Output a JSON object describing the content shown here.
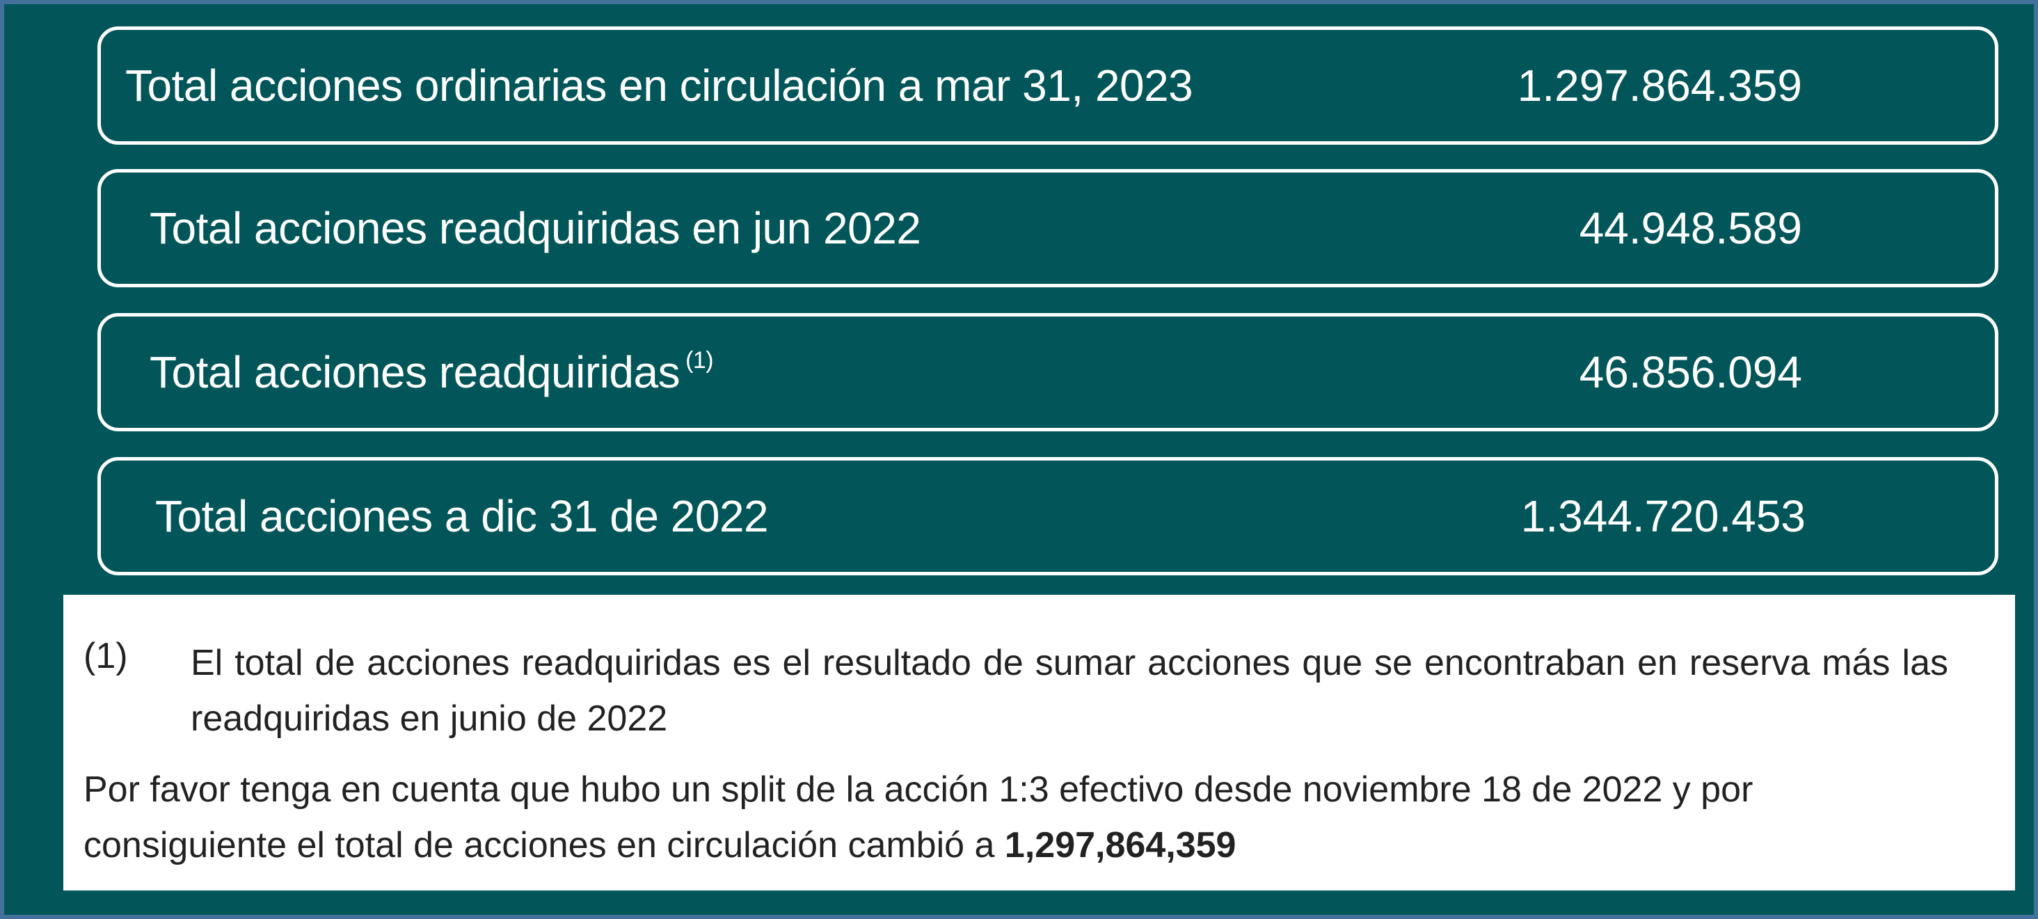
{
  "rows": [
    {
      "label": "Total acciones ordinarias en circulación  a mar 31,  2023",
      "value": "1.297.864.359"
    },
    {
      "label": "Total acciones  readquiridas en jun 2022",
      "value": "44.948.589"
    },
    {
      "label": "Total acciones readquiridas",
      "footnote_ref": "(1)",
      "value": "46.856.094"
    },
    {
      "label": "Total acciones a dic 31 de 2022",
      "value": "1.344.720.453"
    }
  ],
  "notes": {
    "footnote_number": "(1)",
    "footnote_text": "El total de acciones readquiridas es el resultado de sumar acciones que se encontraban en reserva más las readquiridas en junio de 2022",
    "split_text": "Por favor tenga en cuenta que hubo un split de la acción 1:3 efectivo desde noviembre 18 de 2022 y por consiguiente el total de acciones en circulación cambió a ",
    "split_value": "1,297,864,359"
  },
  "colors": {
    "background": "#02565a",
    "border": "#44709c",
    "box_outline": "#ffffff",
    "notes_bg": "#ffffff"
  }
}
